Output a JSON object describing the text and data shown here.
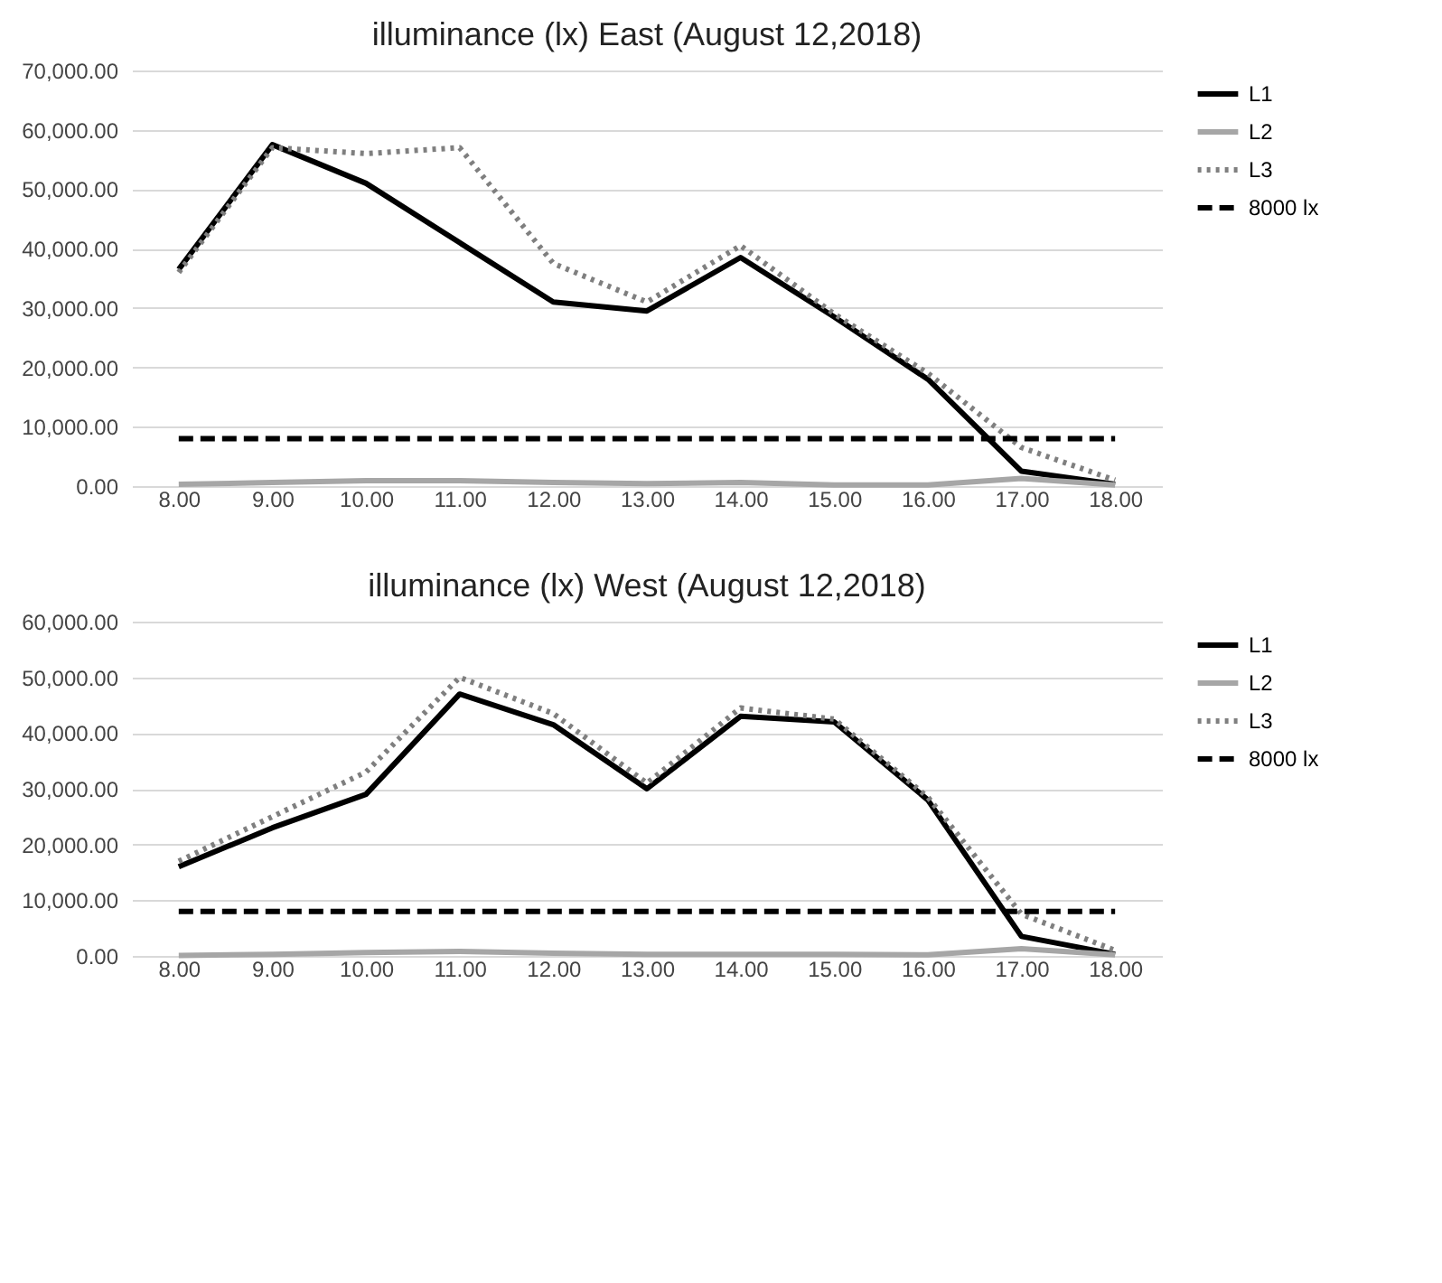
{
  "chart_data": [
    {
      "type": "line",
      "title": "illuminance (lx) East (August 12,2018)",
      "categories": [
        "8.00",
        "9.00",
        "10.00",
        "11.00",
        "12.00",
        "13.00",
        "14.00",
        "15.00",
        "16.00",
        "17.00",
        "18.00"
      ],
      "series": [
        {
          "name": "L1",
          "color": "#000000",
          "line_style": "solid",
          "values": [
            36500,
            57500,
            51000,
            41000,
            31000,
            29500,
            38500,
            28500,
            18000,
            2500,
            300
          ]
        },
        {
          "name": "L2",
          "color": "#a6a6a6",
          "line_style": "solid",
          "values": [
            300,
            600,
            900,
            900,
            600,
            400,
            600,
            200,
            200,
            1300,
            200
          ]
        },
        {
          "name": "L3",
          "color": "#7f7f7f",
          "line_style": "dotted",
          "values": [
            36000,
            57000,
            56000,
            57000,
            37500,
            31000,
            40500,
            29000,
            19000,
            6500,
            1000
          ]
        },
        {
          "name": "8000 lx",
          "color": "#000000",
          "line_style": "dashed",
          "values": [
            8000,
            8000,
            8000,
            8000,
            8000,
            8000,
            8000,
            8000,
            8000,
            8000,
            8000
          ]
        }
      ],
      "ylim": [
        0,
        70000
      ],
      "yticks": [
        {
          "value": 0,
          "label": "0.00"
        },
        {
          "value": 10000,
          "label": "10,000.00"
        },
        {
          "value": 20000,
          "label": "20,000.00"
        },
        {
          "value": 30000,
          "label": "30,000.00"
        },
        {
          "value": 40000,
          "label": "40,000.00"
        },
        {
          "value": 50000,
          "label": "50,000.00"
        },
        {
          "value": 60000,
          "label": "60,000.00"
        },
        {
          "value": 70000,
          "label": "70,000.00"
        }
      ],
      "grid": "y",
      "legend": "right",
      "marker": "none"
    },
    {
      "type": "line",
      "title": "illuminance (lx) West (August 12,2018)",
      "categories": [
        "8.00",
        "9.00",
        "10.00",
        "11.00",
        "12.00",
        "13.00",
        "14.00",
        "15.00",
        "16.00",
        "17.00",
        "18.00"
      ],
      "series": [
        {
          "name": "L1",
          "color": "#000000",
          "line_style": "solid",
          "values": [
            16000,
            23000,
            29000,
            47000,
            41500,
            30000,
            43000,
            42000,
            28000,
            3500,
            300
          ]
        },
        {
          "name": "L2",
          "color": "#a6a6a6",
          "line_style": "solid",
          "values": [
            100,
            300,
            600,
            800,
            500,
            300,
            300,
            300,
            200,
            1300,
            200
          ]
        },
        {
          "name": "L3",
          "color": "#7f7f7f",
          "line_style": "dotted",
          "values": [
            17000,
            25000,
            33000,
            50000,
            43500,
            31000,
            44500,
            42500,
            28500,
            7500,
            1000
          ]
        },
        {
          "name": "8000 lx",
          "color": "#000000",
          "line_style": "dashed",
          "values": [
            8000,
            8000,
            8000,
            8000,
            8000,
            8000,
            8000,
            8000,
            8000,
            8000,
            8000
          ]
        }
      ],
      "ylim": [
        0,
        60000
      ],
      "yticks": [
        {
          "value": 0,
          "label": "0.00"
        },
        {
          "value": 10000,
          "label": "10,000.00"
        },
        {
          "value": 20000,
          "label": "20,000.00"
        },
        {
          "value": 30000,
          "label": "30,000.00"
        },
        {
          "value": 40000,
          "label": "40,000.00"
        },
        {
          "value": 50000,
          "label": "50,000.00"
        },
        {
          "value": 60000,
          "label": "60,000.00"
        }
      ],
      "grid": "y",
      "legend": "right",
      "marker": "none"
    }
  ]
}
